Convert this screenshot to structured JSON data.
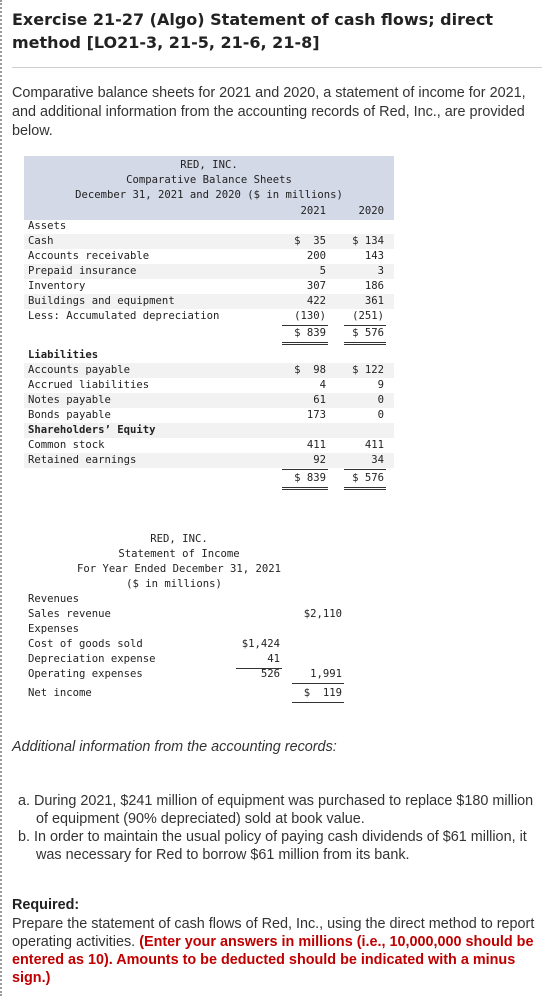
{
  "title": "Exercise 21-27 (Algo) Statement of cash flows; direct method [LO21-3, 21-5, 21-6, 21-8]",
  "intro": "Comparative balance sheets for 2021 and 2020, a statement of income for 2021, and additional information from the accounting records of Red, Inc., are provided below.",
  "balance_sheet": {
    "company": "RED, INC.",
    "name": "Comparative Balance Sheets",
    "period": "December 31, 2021 and 2020 ($ in millions)",
    "year1": "2021",
    "year2": "2020",
    "assets_heading": "Assets",
    "assets": [
      {
        "label": "Cash",
        "v2021": "$  35",
        "v2020": "$ 134"
      },
      {
        "label": "Accounts receivable",
        "v2021": "200",
        "v2020": "143"
      },
      {
        "label": "Prepaid insurance",
        "v2021": "5",
        "v2020": "3"
      },
      {
        "label": "Inventory",
        "v2021": "307",
        "v2020": "186"
      },
      {
        "label": "Buildings and equipment",
        "v2021": "422",
        "v2020": "361"
      },
      {
        "label": "Less: Accumulated depreciation",
        "v2021": "(130)",
        "v2020": "(251)"
      }
    ],
    "assets_total": {
      "v2021": "$ 839",
      "v2020": "$ 576"
    },
    "liabilities_heading": "Liabilities",
    "liabilities": [
      {
        "label": "Accounts payable",
        "v2021": "$  98",
        "v2020": "$ 122"
      },
      {
        "label": "Accrued liabilities",
        "v2021": "4",
        "v2020": "9"
      },
      {
        "label": "Notes payable",
        "v2021": "61",
        "v2020": "0"
      },
      {
        "label": "Bonds payable",
        "v2021": "173",
        "v2020": "0"
      }
    ],
    "equity_heading": "Shareholders’ Equity",
    "equity": [
      {
        "label": "Common stock",
        "v2021": "411",
        "v2020": "411"
      },
      {
        "label": "Retained earnings",
        "v2021": "92",
        "v2020": "34"
      }
    ],
    "le_total": {
      "v2021": "$ 839",
      "v2020": "$ 576"
    }
  },
  "income_statement": {
    "company": "RED, INC.",
    "name": "Statement of Income",
    "period": "For Year Ended December 31, 2021",
    "units": "($ in millions)",
    "revenues_heading": "Revenues",
    "sales_label": "Sales revenue",
    "sales_value": "$2,110",
    "expenses_heading": "Expenses",
    "cogs_label": "Cost of goods sold",
    "cogs_value": "$1,424",
    "dep_label": "Depreciation expense",
    "dep_value": "41",
    "opex_label": "Operating expenses",
    "opex_value": "526",
    "total_expenses": "1,991",
    "net_label": "Net income",
    "net_value": "$  119"
  },
  "additional": {
    "heading": "Additional information from the accounting records:",
    "a": "a. During 2021, $241 million of equipment was purchased to replace $180 million of equipment (90% depreciated) sold at book value.",
    "b": "b. In order to maintain the usual policy of paying cash dividends of $61 million, it was necessary for Red to borrow $61 million from its bank."
  },
  "required": {
    "heading": "Required:",
    "text": "Prepare the statement of cash flows of Red, Inc., using the direct method to report operating activities.",
    "emphasis": "(Enter your answers in millions (i.e., 10,000,000 should be entered as 10). Amounts to be deducted should be indicated with a minus sign.)"
  }
}
